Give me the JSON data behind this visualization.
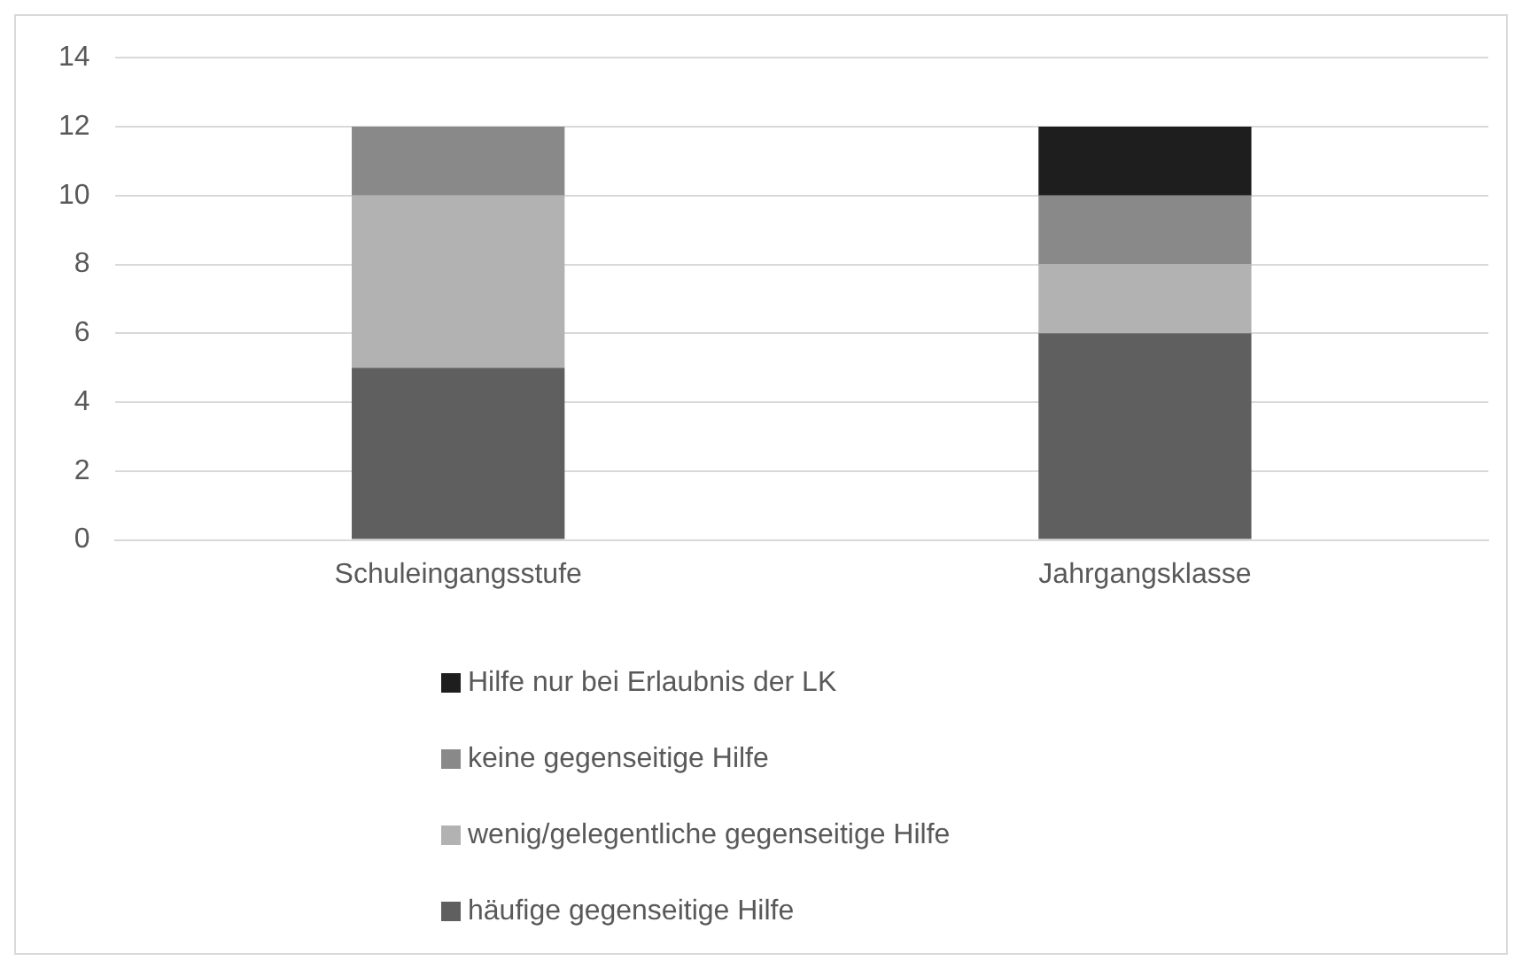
{
  "chart_data": {
    "type": "bar",
    "stacked": true,
    "categories": [
      "Schuleingangsstufe",
      "Jahrgangsklasse"
    ],
    "series": [
      {
        "name": "häufige gegenseitige Hilfe",
        "color": "#5f5f5f",
        "values": [
          5,
          6
        ]
      },
      {
        "name": "wenig/gelegentliche gegenseitige Hilfe",
        "color": "#b2b2b2",
        "values": [
          5,
          2
        ]
      },
      {
        "name": "keine gegenseitige Hilfe",
        "color": "#898989",
        "values": [
          2,
          2
        ]
      },
      {
        "name": "Hilfe nur bei Erlaubnis der LK",
        "color": "#1e1e1e",
        "values": [
          0,
          2
        ]
      }
    ],
    "ylim": [
      0,
      14
    ],
    "yticks": [
      0,
      2,
      4,
      6,
      8,
      10,
      12,
      14
    ],
    "grid": "y",
    "legend": "bottom"
  }
}
